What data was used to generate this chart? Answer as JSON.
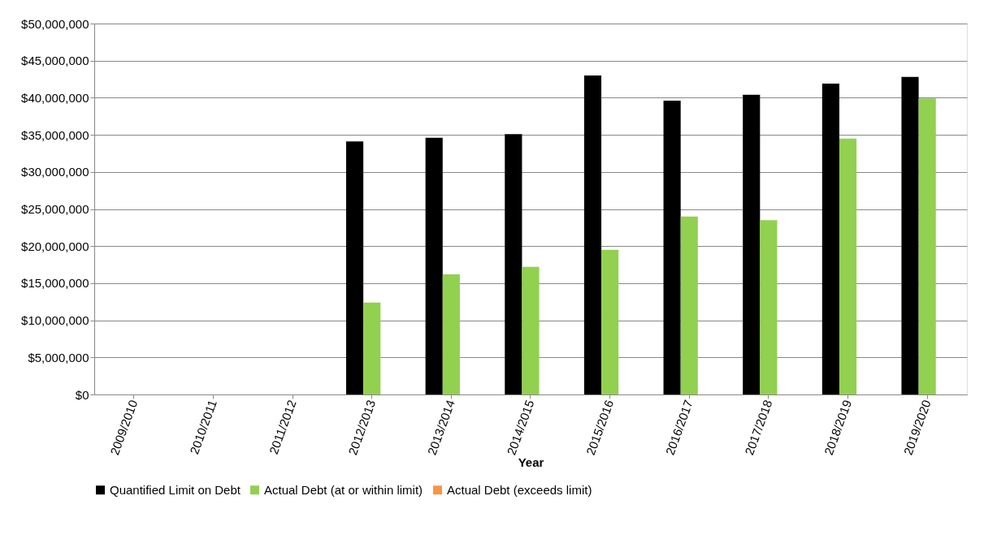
{
  "chart_data": {
    "type": "bar",
    "xlabel": "Year",
    "categories": [
      "2009/2010",
      "2010/2011",
      "2011/2012",
      "2012/2013",
      "2013/2014",
      "2014/2015",
      "2015/2016",
      "2016/2017",
      "2017/2018",
      "2018/2019",
      "2019/2020"
    ],
    "series": [
      {
        "name": "Quantified Limit on Debt",
        "color": "#000000",
        "values": [
          null,
          null,
          null,
          34100000,
          34600000,
          35100000,
          43000000,
          39600000,
          40400000,
          41900000,
          42800000
        ]
      },
      {
        "name": "Actual Debt (at or within limit)",
        "color": "#92d050",
        "values": [
          null,
          null,
          null,
          12400000,
          16200000,
          17200000,
          19500000,
          24000000,
          23500000,
          34500000,
          39900000
        ]
      },
      {
        "name": "Actual Debt (exceeds limit)",
        "color": "#f79646",
        "values": [
          null,
          null,
          null,
          null,
          null,
          null,
          null,
          null,
          null,
          null,
          null
        ]
      }
    ],
    "ylim": [
      0,
      50000000
    ],
    "yticks": [
      {
        "value": 0,
        "label": "$0"
      },
      {
        "value": 5000000,
        "label": "$5,000,000"
      },
      {
        "value": 10000000,
        "label": "$10,000,000"
      },
      {
        "value": 15000000,
        "label": "$15,000,000"
      },
      {
        "value": 20000000,
        "label": "$20,000,000"
      },
      {
        "value": 25000000,
        "label": "$25,000,000"
      },
      {
        "value": 30000000,
        "label": "$30,000,000"
      },
      {
        "value": 35000000,
        "label": "$35,000,000"
      },
      {
        "value": 40000000,
        "label": "$40,000,000"
      },
      {
        "value": 45000000,
        "label": "$45,000,000"
      },
      {
        "value": 50000000,
        "label": "$50,000,000"
      }
    ],
    "grid": "y",
    "legend": "bottom"
  }
}
